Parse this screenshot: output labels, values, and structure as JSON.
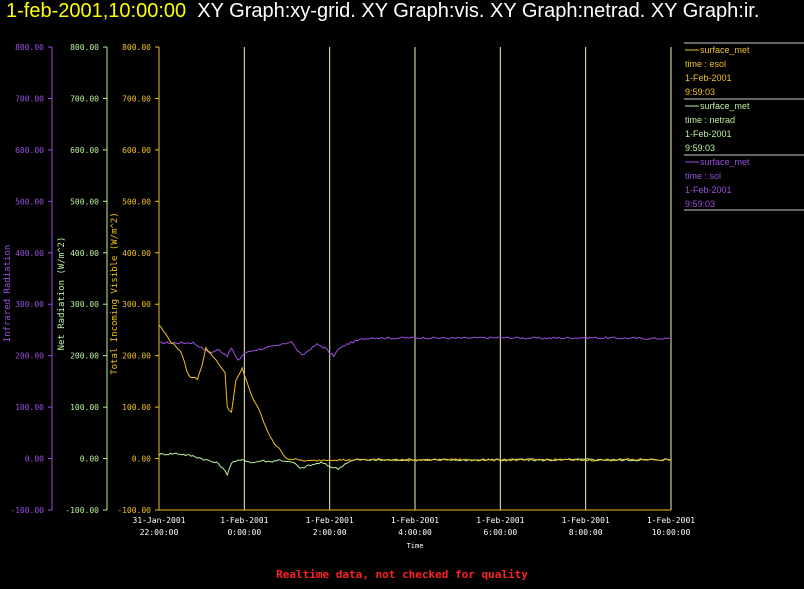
{
  "header": {
    "timestamp": "1-feb-2001,10:00:00",
    "graphs": "XY Graph:xy-grid.  XY Graph:vis.  XY Graph:netrad.  XY Graph:ir."
  },
  "footer": {
    "quality_note": "Realtime data, not checked for quality"
  },
  "colors": {
    "ir": "#9a4fe0",
    "netrad": "#b8f0a0",
    "vis": "#f0c020",
    "grid": "#f0f0c0",
    "note": "#ff2020"
  },
  "chart_data": {
    "type": "line",
    "xlabel": "Time",
    "x_ticks": [
      {
        "line1": "31-Jan-2001",
        "line2": "22:00:00"
      },
      {
        "line1": "1-Feb-2001",
        "line2": "0:00:00"
      },
      {
        "line1": "1-Feb-2001",
        "line2": "2:00:00"
      },
      {
        "line1": "1-Feb-2001",
        "line2": "4:00:00"
      },
      {
        "line1": "1-Feb-2001",
        "line2": "6:00:00"
      },
      {
        "line1": "1-Feb-2001",
        "line2": "8:00:00"
      },
      {
        "line1": "1-Feb-2001",
        "line2": "10:00:00"
      }
    ],
    "xlim_hours_from_tick0": [
      0,
      12
    ],
    "y_axes": [
      {
        "id": "ir",
        "label": "Infrared Radiation",
        "ylim": [
          -100,
          800
        ],
        "ticks": [
          "800.00",
          "700.00",
          "600.00",
          "500.00",
          "400.00",
          "300.00",
          "200.00",
          "100.00",
          "0.00",
          "-100.00"
        ]
      },
      {
        "id": "netrad",
        "label": "Net Radiation (W/m^2)",
        "ylim": [
          -100,
          800
        ],
        "ticks": [
          "800.00",
          "700.00",
          "600.00",
          "500.00",
          "400.00",
          "300.00",
          "200.00",
          "100.00",
          "0.00",
          "-100.00"
        ]
      },
      {
        "id": "vis",
        "label": "Total Incoming Visible (W/m^2)",
        "ylim": [
          -100,
          800
        ],
        "ticks": [
          "800.00",
          "700.00",
          "600.00",
          "500.00",
          "400.00",
          "300.00",
          "200.00",
          "100.00",
          "0.00",
          "-100.00"
        ]
      }
    ],
    "legend": [
      {
        "id": "vis",
        "name": "surface_met",
        "var": "time : esol",
        "date": "1-Feb-2001",
        "time": "9:59:03"
      },
      {
        "id": "netrad",
        "name": "surface_met",
        "var": "time : netrad",
        "date": "1-Feb-2001",
        "time": "9:59:03"
      },
      {
        "id": "ir",
        "name": "surface_met",
        "var": "time : sol",
        "date": "1-Feb-2001",
        "time": "9:59:03"
      }
    ],
    "series": [
      {
        "id": "ir",
        "x": [
          0,
          0.8,
          1.0,
          1.2,
          1.4,
          1.6,
          1.7,
          1.85,
          2.0,
          2.2,
          2.5,
          2.7,
          2.9,
          3.1,
          3.2,
          3.35,
          3.5,
          3.7,
          3.9,
          4.0,
          4.1,
          4.2,
          4.4,
          4.6,
          4.8,
          5.0,
          5.5,
          6,
          7,
          8,
          9,
          10,
          11,
          12
        ],
        "y": [
          225,
          225,
          215,
          205,
          212,
          200,
          215,
          190,
          205,
          210,
          215,
          218,
          222,
          228,
          215,
          200,
          210,
          222,
          215,
          205,
          200,
          212,
          222,
          228,
          233,
          235,
          234,
          235,
          234,
          235,
          234,
          235,
          234,
          233
        ]
      },
      {
        "id": "netrad",
        "x": [
          0,
          0.4,
          0.8,
          1.0,
          1.2,
          1.4,
          1.6,
          1.7,
          1.8,
          2.0,
          2.2,
          2.4,
          2.6,
          2.8,
          3.0,
          3.2,
          3.3,
          3.45,
          3.6,
          3.8,
          4.0,
          4.2,
          4.4,
          4.6,
          5.0,
          6,
          7,
          8,
          9,
          10,
          11,
          12
        ],
        "y": [
          8,
          10,
          5,
          0,
          -5,
          -10,
          -30,
          -8,
          -5,
          -3,
          -8,
          -4,
          -6,
          -3,
          -5,
          -10,
          -20,
          -15,
          -12,
          -8,
          -15,
          -20,
          -8,
          -2,
          -3,
          -2,
          -3,
          -2,
          -3,
          -2,
          -3,
          -2
        ]
      },
      {
        "id": "vis",
        "x": [
          0,
          0.3,
          0.5,
          0.7,
          0.9,
          1.0,
          1.1,
          1.25,
          1.4,
          1.55,
          1.6,
          1.7,
          1.8,
          1.95,
          2.1,
          2.2,
          2.35,
          2.5,
          2.7,
          2.9,
          3.0,
          3.2,
          3.5,
          3.8,
          4.0,
          4.5,
          5,
          6,
          7,
          8,
          9,
          10,
          11,
          12
        ],
        "y": [
          260,
          225,
          210,
          160,
          155,
          180,
          215,
          200,
          185,
          165,
          100,
          90,
          150,
          175,
          140,
          115,
          95,
          60,
          30,
          10,
          0,
          -2,
          -5,
          -3,
          -2,
          -3,
          -2,
          -3,
          -2,
          -3,
          -2,
          -3,
          -2,
          -2
        ]
      }
    ]
  }
}
